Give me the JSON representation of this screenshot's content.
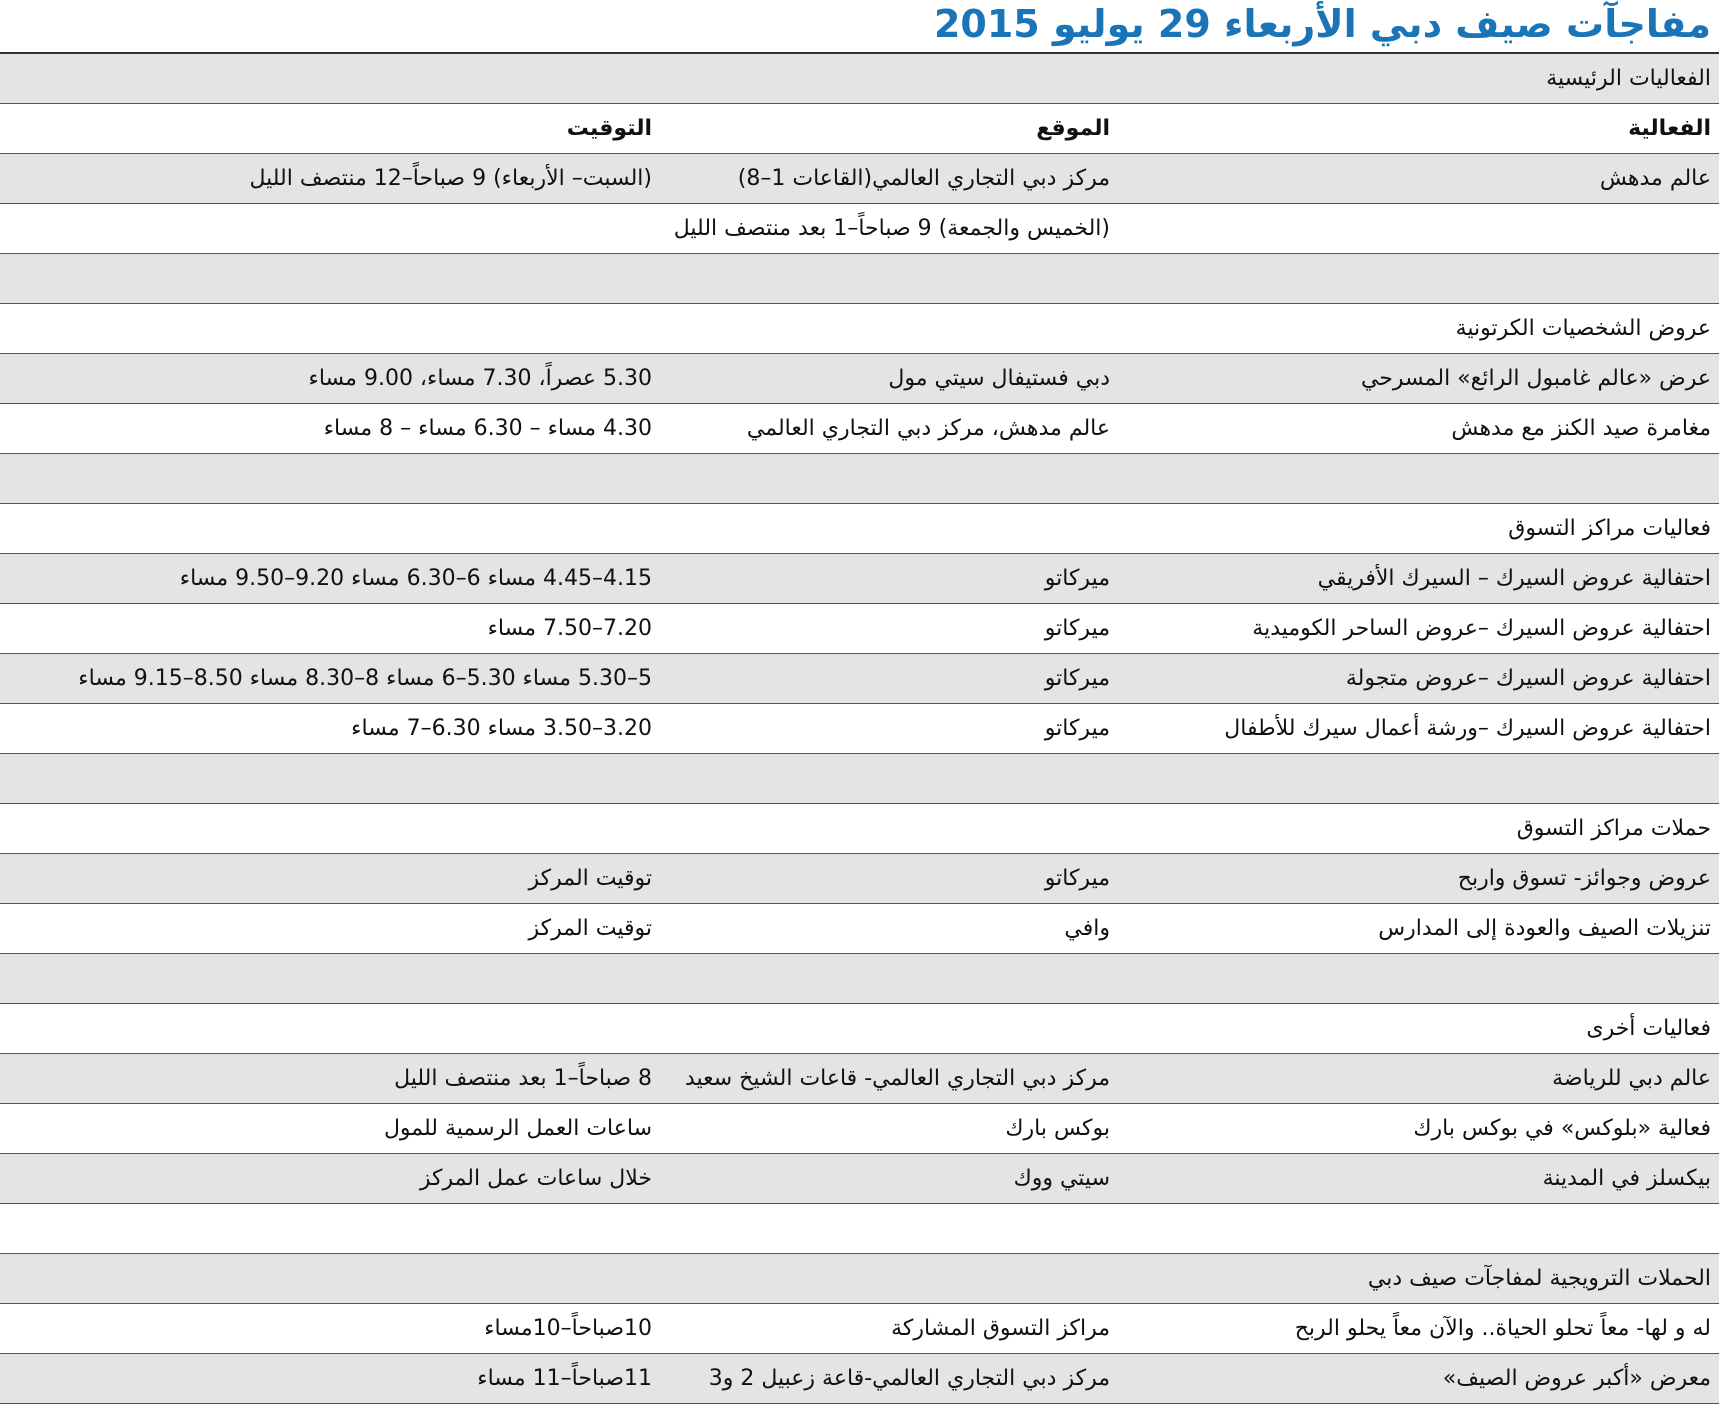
{
  "title": "مفاجآت صيف دبي الأربعاء 29 يوليو 2015",
  "sections": [
    {
      "heading": "الفعاليات الرئيسية",
      "columns": {
        "activity": "الفعالية",
        "location": "الموقع",
        "time": "التوقيت"
      },
      "rows": [
        {
          "activity": "عالم مدهش",
          "location": "مركز دبي التجاري العالمي(القاعات 1–8)",
          "time": "(السبت– الأربعاء) 9 صباحاً–12 منتصف الليل"
        },
        {
          "continuation": "(الخميس والجمعة) 9 صباحاً–1 بعد منتصف الليل"
        }
      ]
    },
    {
      "heading": "عروض الشخصيات الكرتونية",
      "rows": [
        {
          "activity": "عرض «عالم غامبول الرائع» المسرحي",
          "location": "دبي فستيفال سيتي مول",
          "time": "5.30 عصراً، 7.30 مساء، 9.00 مساء"
        },
        {
          "activity": "مغامرة صيد الكنز مع مدهش",
          "location": "عالم مدهش، مركز دبي التجاري العالمي",
          "time": "4.30 مساء – 6.30 مساء – 8 مساء"
        }
      ]
    },
    {
      "heading": "فعاليات مراكز التسوق",
      "rows": [
        {
          "activity": "احتفالية عروض السيرك – السيرك الأفريقي",
          "location": "ميركاتو",
          "time": "4.15–4.45 مساء 6–6.30 مساء 9.20–9.50 مساء"
        },
        {
          "activity": "احتفالية عروض السيرك –عروض الساحر الكوميدية",
          "location": "ميركاتو",
          "time": "7.20–7.50 مساء"
        },
        {
          "activity": "احتفالية عروض السيرك –عروض متجولة",
          "location": "ميركاتو",
          "time": "5–5.30 مساء 5.30–6 مساء 8–8.30 مساء 8.50–9.15 مساء"
        },
        {
          "activity": "احتفالية عروض السيرك –ورشة أعمال سيرك للأطفال",
          "location": "ميركاتو",
          "time": "3.20–3.50 مساء 6.30–7 مساء"
        }
      ]
    },
    {
      "heading": "حملات مراكز التسوق",
      "rows": [
        {
          "activity": "عروض وجوائز- تسوق واربح",
          "location": "ميركاتو",
          "time": "توقيت المركز"
        },
        {
          "activity": "تنزيلات الصيف والعودة إلى المدارس",
          "location": "وافي",
          "time": "توقيت المركز"
        }
      ]
    },
    {
      "heading": "فعاليات أخرى",
      "rows": [
        {
          "activity": "عالم دبي للرياضة",
          "location": "مركز دبي التجاري العالمي- قاعات الشيخ سعيد",
          "time": "8 صباحاً–1 بعد منتصف الليل"
        },
        {
          "activity": "فعالية «بلوكس» في بوكس بارك",
          "location": "بوكس بارك",
          "time": "ساعات العمل الرسمية للمول"
        },
        {
          "activity": "بيكسلز في المدينة",
          "location": "سيتي ووك",
          "time": "خلال ساعات عمل المركز"
        }
      ]
    },
    {
      "heading": "الحملات الترويجية لمفاجآت صيف دبي",
      "rows": [
        {
          "activity": "له و لها- معاً تحلو الحياة.. والآن معاً يحلو الربح",
          "location": "مراكز التسوق المشاركة",
          "time": "10صباحاً–10مساء"
        },
        {
          "activity": "معرض «أكبر عروض الصيف»",
          "location": "مركز دبي التجاري العالمي-قاعة زعبيل 2 و3",
          "time": "11صباحاً–11 مساء"
        }
      ]
    }
  ]
}
